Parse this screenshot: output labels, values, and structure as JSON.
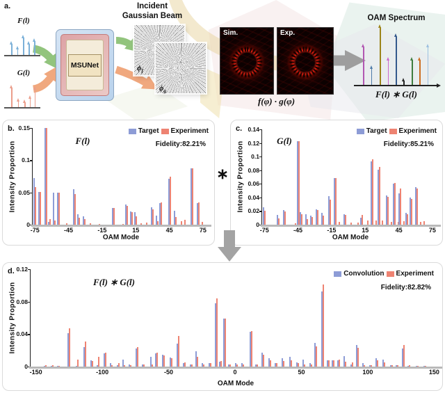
{
  "colors": {
    "target_blue": "#8d9cd6",
    "experiment_red": "#ee8372",
    "green_arrow": "#92c47d",
    "orange_arrow": "#f0a87e",
    "gray_arrow": "#9e9e9e"
  },
  "panel_a": {
    "label": "a.",
    "f_label": "F(l)",
    "g_label": "G(l)",
    "msunet_label": "MSUNet",
    "incident_title_line1": "Incident",
    "incident_title_line2": "Gaussian Beam",
    "phi_f_base": "ϕ",
    "phi_f_sub": "f",
    "phi_g_base": "ϕ",
    "phi_g_sub": "g",
    "sim_label": "Sim.",
    "exp_label": "Exp.",
    "product_label": "f(φ) · g(φ)",
    "oam_title": "OAM Spectrum",
    "conv_label": "F(l) ∗ G(l)",
    "f_stems": {
      "color": "#7bb0d8",
      "points": [
        [
          0.1,
          0.6
        ],
        [
          0.3,
          0.38
        ],
        [
          0.5,
          0.85
        ],
        [
          0.7,
          0.6
        ],
        [
          0.88,
          0.7
        ]
      ]
    },
    "g_stems": {
      "color": "#eb9d8b",
      "points": [
        [
          0.1,
          0.85
        ],
        [
          0.33,
          0.35
        ],
        [
          0.55,
          0.3
        ],
        [
          0.73,
          0.45
        ],
        [
          0.9,
          0.78
        ]
      ]
    },
    "oam_stems": [
      {
        "x": 0.06,
        "h": 0.68,
        "color": "#b257b2"
      },
      {
        "x": 0.17,
        "h": 0.33,
        "color": "#4d7aa8"
      },
      {
        "x": 0.29,
        "h": 1.0,
        "color": "#9c8419"
      },
      {
        "x": 0.4,
        "h": 0.47,
        "color": "#cc66cc"
      },
      {
        "x": 0.51,
        "h": 0.85,
        "color": "#34598c"
      },
      {
        "x": 0.62,
        "h": 0.13,
        "color": "#222222"
      },
      {
        "x": 0.73,
        "h": 0.47,
        "color": "#3f7d3f"
      },
      {
        "x": 0.84,
        "h": 0.47,
        "color": "#cc6e22"
      },
      {
        "x": 0.95,
        "h": 0.68,
        "color": "#9cc0e0"
      }
    ]
  },
  "operators": {
    "star": "∗"
  },
  "chart_data": [
    {
      "type": "bar",
      "panel_label": "b.",
      "title": "F(l)",
      "xlabel": "OAM Mode",
      "ylabel": "Intensity Proportion",
      "fidelity": "Fidelity:82.21%",
      "legend_position": "top-right",
      "grid": false,
      "xlim": [
        -77,
        80
      ],
      "ylim": [
        0,
        0.15
      ],
      "xticks": [
        -75,
        -45,
        -15,
        15,
        45,
        75
      ],
      "yticks": [
        0,
        0.05,
        0.1,
        0.15
      ],
      "ytick_labels": [
        "0",
        "0.05",
        "0.1",
        "0.15"
      ],
      "series": [
        {
          "name": "Target",
          "color": "#8d9cd6"
        },
        {
          "name": "Experiment",
          "color": "#ee8372"
        }
      ],
      "bars": [
        [
          -75,
          0.072,
          0.058
        ],
        [
          -71,
          0.051,
          0.051
        ],
        [
          -65,
          0.15,
          0.15
        ],
        [
          -62,
          0.004,
          0.009
        ],
        [
          -58,
          0.05,
          0.006
        ],
        [
          -54,
          0.05,
          0.05
        ],
        [
          -47,
          0,
          0.002
        ],
        [
          -40,
          0.055,
          0.048
        ],
        [
          -36,
          0.016,
          0.011
        ],
        [
          -31,
          0.013,
          0.009
        ],
        [
          -26,
          0,
          0.002
        ],
        [
          -18,
          0,
          0.001
        ],
        [
          -5,
          0.026,
          0.026
        ],
        [
          3,
          0,
          0.001
        ],
        [
          7,
          0.031,
          0.029
        ],
        [
          11,
          0.02,
          0.019
        ],
        [
          15,
          0.019,
          0.013
        ],
        [
          19,
          0,
          0.002
        ],
        [
          24,
          0,
          0.003
        ],
        [
          30,
          0.027,
          0.024
        ],
        [
          34,
          0.014,
          0.005
        ],
        [
          37,
          0.034,
          0.035
        ],
        [
          45,
          0.071,
          0.075
        ],
        [
          50,
          0.022,
          0.012
        ],
        [
          55,
          0,
          0.005
        ],
        [
          58,
          0,
          0.008
        ],
        [
          65,
          0.087,
          0.087
        ],
        [
          71,
          0.034,
          0.035
        ],
        [
          74,
          0,
          0.004
        ]
      ]
    },
    {
      "type": "bar",
      "panel_label": "c.",
      "title": "G(l)",
      "xlabel": "OAM Mode",
      "ylabel": "Intensity Proportion",
      "fidelity": "Fidelity:85.21%",
      "legend_position": "top-right",
      "grid": false,
      "xlim": [
        -77,
        80
      ],
      "ylim": [
        0,
        0.14
      ],
      "xticks": [
        -75,
        -45,
        -15,
        15,
        45,
        75
      ],
      "yticks": [
        0,
        0.02,
        0.04,
        0.06,
        0.08,
        0.1,
        0.12,
        0.14
      ],
      "ytick_labels": [
        "0",
        "0.02",
        "0.04",
        "0.06",
        "0.08",
        "0.1",
        "0.12",
        "0.14"
      ],
      "series": [
        {
          "name": "Target",
          "color": "#8d9cd6"
        },
        {
          "name": "Experiment",
          "color": "#ee8372"
        }
      ],
      "bars": [
        [
          -75,
          0.026,
          0.02
        ],
        [
          -63,
          0.014,
          0.009
        ],
        [
          -57,
          0.021,
          0.019
        ],
        [
          -48,
          0,
          0.002
        ],
        [
          -45,
          0.123,
          0.123
        ],
        [
          -42,
          0.018,
          0.015
        ],
        [
          -37,
          0.015,
          0.008
        ],
        [
          -33,
          0.013,
          0.011
        ],
        [
          -28,
          0.023,
          0.021
        ],
        [
          -23,
          0.017,
          0.013
        ],
        [
          -17,
          0.042,
          0.037
        ],
        [
          -12,
          0.068,
          0.068
        ],
        [
          -9,
          0,
          0.004
        ],
        [
          -3,
          0.015,
          0.014
        ],
        [
          2,
          0,
          0.003
        ],
        [
          8,
          0,
          0.003
        ],
        [
          12,
          0.01,
          0.014
        ],
        [
          17,
          0,
          0.006
        ],
        [
          21,
          0.093,
          0.096
        ],
        [
          24,
          0,
          0.006
        ],
        [
          27,
          0.081,
          0.085
        ],
        [
          30,
          0,
          0.006
        ],
        [
          35,
          0.043,
          0.041
        ],
        [
          38,
          0,
          0.004
        ],
        [
          41,
          0.06,
          0.061
        ],
        [
          44,
          0,
          0.004
        ],
        [
          46,
          0.046,
          0.053
        ],
        [
          49,
          0,
          0.005
        ],
        [
          52,
          0.017,
          0.015
        ],
        [
          56,
          0.04,
          0.038
        ],
        [
          61,
          0.055,
          0.053
        ],
        [
          64,
          0,
          0.004
        ],
        [
          67,
          0,
          0.005
        ]
      ]
    },
    {
      "type": "bar",
      "panel_label": "d.",
      "title": "F(l) ∗ G(l)",
      "xlabel": "OAM Mode",
      "ylabel": "Intensity Proportion",
      "fidelity": "Fidelity:82.82%",
      "legend_position": "top-right",
      "grid": false,
      "xlim": [
        -154,
        154
      ],
      "ylim": [
        0,
        0.12
      ],
      "xticks": [
        -150,
        -100,
        -50,
        0,
        50,
        100,
        150
      ],
      "yticks": [
        0,
        0.04,
        0.08,
        0.12
      ],
      "ytick_labels": [
        "0",
        "0.04",
        "0.08",
        "0.12"
      ],
      "series": [
        {
          "name": "Convolution",
          "color": "#8d9cd6"
        },
        {
          "name": "Experiment",
          "color": "#ee8372"
        }
      ],
      "bars": [
        [
          -143,
          0.001,
          0.002
        ],
        [
          -138,
          0.001,
          0.002
        ],
        [
          -133,
          0.001,
          0.001
        ],
        [
          -125,
          0.041,
          0.047
        ],
        [
          -119,
          0.001,
          0.009
        ],
        [
          -113,
          0.024,
          0.031
        ],
        [
          -108,
          0.008,
          0.007
        ],
        [
          -103,
          0.002,
          0.012
        ],
        [
          -98,
          0.016,
          0.017
        ],
        [
          -93,
          0.004,
          0.002
        ],
        [
          -88,
          0.002,
          0.004
        ],
        [
          -84,
          0.009,
          0.002
        ],
        [
          -79,
          0.003,
          0.002
        ],
        [
          -74,
          0.022,
          0.024
        ],
        [
          -69,
          0.003,
          0.003
        ],
        [
          -63,
          0.012,
          0.003
        ],
        [
          -59,
          0.016,
          0.017
        ],
        [
          -54,
          0.015,
          0.014
        ],
        [
          -48,
          0.011,
          0.01
        ],
        [
          -43,
          0.028,
          0.038
        ],
        [
          -38,
          0.004,
          0.005
        ],
        [
          -33,
          0.003,
          0.003
        ],
        [
          -29,
          0.019,
          0.012
        ],
        [
          -24,
          0.004,
          0.003
        ],
        [
          -19,
          0.004,
          0.004
        ],
        [
          -14,
          0.078,
          0.084
        ],
        [
          -11,
          0.006,
          0.007
        ],
        [
          -8,
          0.059,
          0.059
        ],
        [
          -4,
          0.003,
          0.003
        ],
        [
          1,
          0.004,
          0.003
        ],
        [
          6,
          0.004,
          0.003
        ],
        [
          12,
          0.043,
          0.044
        ],
        [
          16,
          0.003,
          0.003
        ],
        [
          21,
          0.017,
          0.015
        ],
        [
          26,
          0.01,
          0.008
        ],
        [
          31,
          0.004,
          0.004
        ],
        [
          36,
          0.01,
          0.007
        ],
        [
          42,
          0.012,
          0.008
        ],
        [
          47,
          0.005,
          0.004
        ],
        [
          52,
          0.009,
          0.003
        ],
        [
          57,
          0.004,
          0.003
        ],
        [
          61,
          0.029,
          0.025
        ],
        [
          66,
          0.093,
          0.101
        ],
        [
          70,
          0.008,
          0.008
        ],
        [
          74,
          0.008,
          0.008
        ],
        [
          78,
          0.008,
          0.009
        ],
        [
          83,
          0.013,
          0.006
        ],
        [
          88,
          0.003,
          0.005
        ],
        [
          92,
          0.027,
          0.023
        ],
        [
          97,
          0.004,
          0.002
        ],
        [
          102,
          0.002,
          0.002
        ],
        [
          107,
          0.01,
          0.008
        ],
        [
          112,
          0.009,
          0.005
        ],
        [
          118,
          0.002,
          0.002
        ],
        [
          122,
          0.002,
          0.002
        ],
        [
          127,
          0.022,
          0.027
        ],
        [
          131,
          0.001,
          0.002
        ],
        [
          137,
          0.001,
          0.001
        ],
        [
          143,
          0.001,
          0.001
        ]
      ]
    }
  ]
}
